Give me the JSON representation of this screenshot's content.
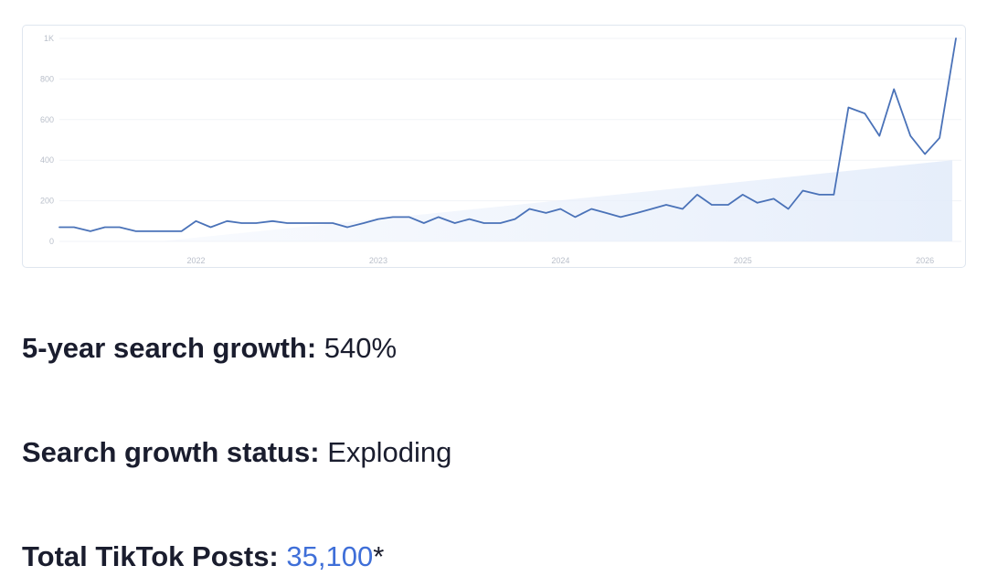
{
  "chart_data": {
    "type": "line",
    "y_ticks": [
      "0",
      "200",
      "400",
      "600",
      "800",
      "1K"
    ],
    "ylim": [
      0,
      1000
    ],
    "x_ticks": [
      {
        "label": "2022",
        "x": 2022.0
      },
      {
        "label": "2023",
        "x": 2023.0
      },
      {
        "label": "2024",
        "x": 2024.0
      },
      {
        "label": "2025",
        "x": 2025.0
      },
      {
        "label": "2026",
        "x": 2026.0
      }
    ],
    "xlim": [
      2021.25,
      2026.2
    ],
    "grid": true,
    "trend_area": {
      "x_start": 2021.8,
      "x_end": 2026.15,
      "y_start": 0,
      "y_end": 400
    },
    "series": [
      {
        "color": "#4a72b8",
        "x": [
          2021.25,
          2021.33,
          2021.42,
          2021.5,
          2021.58,
          2021.67,
          2021.75,
          2021.83,
          2021.92,
          2022.0,
          2022.08,
          2022.17,
          2022.25,
          2022.33,
          2022.42,
          2022.5,
          2022.58,
          2022.67,
          2022.75,
          2022.83,
          2022.92,
          2023.0,
          2023.08,
          2023.17,
          2023.25,
          2023.33,
          2023.42,
          2023.5,
          2023.58,
          2023.67,
          2023.75,
          2023.83,
          2023.92,
          2024.0,
          2024.08,
          2024.17,
          2024.25,
          2024.33,
          2024.42,
          2024.5,
          2024.58,
          2024.67,
          2024.75,
          2024.83,
          2024.92,
          2025.0,
          2025.08,
          2025.17,
          2025.25,
          2025.33,
          2025.42,
          2025.5,
          2025.58,
          2025.67,
          2025.75,
          2025.83,
          2025.92,
          2026.0,
          2026.08,
          2026.17
        ],
        "y": [
          70,
          70,
          50,
          70,
          70,
          50,
          50,
          50,
          50,
          100,
          70,
          100,
          90,
          90,
          100,
          90,
          90,
          90,
          90,
          70,
          90,
          110,
          120,
          120,
          90,
          120,
          90,
          110,
          90,
          90,
          110,
          160,
          140,
          160,
          120,
          160,
          140,
          120,
          140,
          160,
          180,
          160,
          230,
          180,
          180,
          230,
          190,
          210,
          160,
          250,
          230,
          230,
          660,
          630,
          520,
          750,
          520,
          430,
          510,
          1000
        ]
      }
    ]
  },
  "stats": {
    "growth": {
      "label": "5-year search growth:",
      "value": "540%"
    },
    "status": {
      "label": "Search growth status:",
      "value": "Exploding"
    },
    "posts": {
      "label": "Total TikTok Posts:",
      "value": "35,100",
      "suffix": "*"
    }
  },
  "colors": {
    "line": "#4a72b8",
    "link": "#3f6fd8",
    "area": "#e6eefb"
  }
}
